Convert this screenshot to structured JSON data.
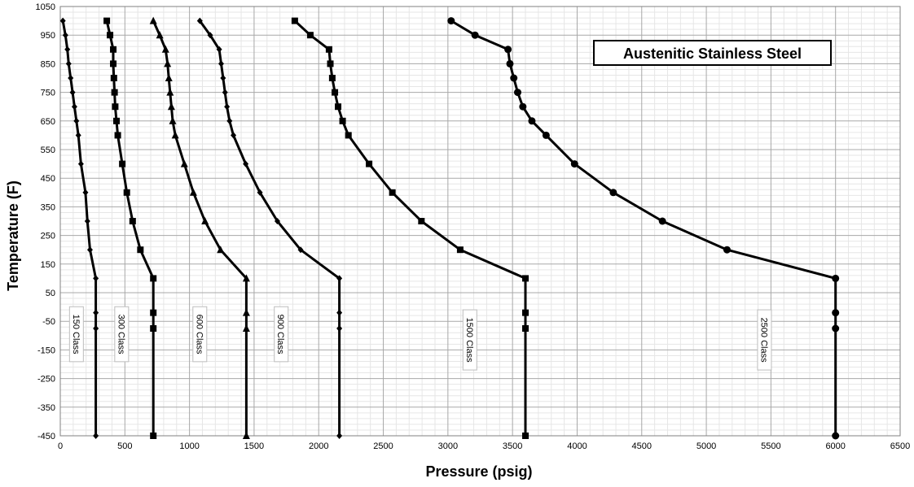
{
  "chart_data": {
    "type": "line",
    "title": "Austenitic Stainless Steel",
    "xlabel": "Pressure (psig)",
    "ylabel": "Temperature (F)",
    "xlim": [
      0,
      6500
    ],
    "ylim": [
      -450,
      1050
    ],
    "xticks": [
      0,
      500,
      1000,
      1500,
      2000,
      2500,
      3000,
      3500,
      4000,
      4500,
      5000,
      5500,
      6000,
      6500
    ],
    "yticks": [
      1050,
      950,
      850,
      750,
      650,
      550,
      450,
      350,
      250,
      150,
      50,
      -50,
      -150,
      -250,
      -350,
      -450
    ],
    "grid": true,
    "series_color": "#000000",
    "series": [
      {
        "name": "150 Class",
        "marker": "diamond",
        "points": [
          [
            275,
            -450
          ],
          [
            275,
            -75
          ],
          [
            275,
            -20
          ],
          [
            275,
            100
          ],
          [
            230,
            200
          ],
          [
            210,
            300
          ],
          [
            195,
            400
          ],
          [
            160,
            500
          ],
          [
            140,
            600
          ],
          [
            125,
            650
          ],
          [
            110,
            700
          ],
          [
            95,
            750
          ],
          [
            80,
            800
          ],
          [
            65,
            850
          ],
          [
            55,
            900
          ],
          [
            40,
            950
          ],
          [
            20,
            1000
          ]
        ]
      },
      {
        "name": "300 Class",
        "marker": "square",
        "points": [
          [
            720,
            -450
          ],
          [
            720,
            -75
          ],
          [
            720,
            -20
          ],
          [
            720,
            100
          ],
          [
            620,
            200
          ],
          [
            560,
            300
          ],
          [
            515,
            400
          ],
          [
            480,
            500
          ],
          [
            445,
            600
          ],
          [
            435,
            650
          ],
          [
            425,
            700
          ],
          [
            420,
            750
          ],
          [
            415,
            800
          ],
          [
            410,
            850
          ],
          [
            410,
            900
          ],
          [
            385,
            950
          ],
          [
            360,
            1000
          ]
        ]
      },
      {
        "name": "600 Class",
        "marker": "triangle",
        "points": [
          [
            1440,
            -450
          ],
          [
            1440,
            -75
          ],
          [
            1440,
            -20
          ],
          [
            1440,
            100
          ],
          [
            1240,
            200
          ],
          [
            1120,
            300
          ],
          [
            1030,
            400
          ],
          [
            960,
            500
          ],
          [
            890,
            600
          ],
          [
            870,
            650
          ],
          [
            860,
            700
          ],
          [
            850,
            750
          ],
          [
            840,
            800
          ],
          [
            830,
            850
          ],
          [
            815,
            900
          ],
          [
            770,
            950
          ],
          [
            720,
            1000
          ]
        ]
      },
      {
        "name": "900 Class",
        "marker": "diamond",
        "points": [
          [
            2160,
            -450
          ],
          [
            2160,
            -75
          ],
          [
            2160,
            -20
          ],
          [
            2160,
            100
          ],
          [
            1860,
            200
          ],
          [
            1680,
            300
          ],
          [
            1545,
            400
          ],
          [
            1435,
            500
          ],
          [
            1340,
            600
          ],
          [
            1310,
            650
          ],
          [
            1290,
            700
          ],
          [
            1275,
            750
          ],
          [
            1260,
            800
          ],
          [
            1245,
            850
          ],
          [
            1230,
            900
          ],
          [
            1160,
            950
          ],
          [
            1080,
            1000
          ]
        ]
      },
      {
        "name": "1500 Class",
        "marker": "square",
        "points": [
          [
            3600,
            -450
          ],
          [
            3600,
            -75
          ],
          [
            3600,
            -20
          ],
          [
            3600,
            100
          ],
          [
            3095,
            200
          ],
          [
            2795,
            300
          ],
          [
            2570,
            400
          ],
          [
            2390,
            500
          ],
          [
            2230,
            600
          ],
          [
            2185,
            650
          ],
          [
            2150,
            700
          ],
          [
            2125,
            750
          ],
          [
            2105,
            800
          ],
          [
            2090,
            850
          ],
          [
            2080,
            900
          ],
          [
            1935,
            950
          ],
          [
            1815,
            1000
          ]
        ]
      },
      {
        "name": "2500 Class",
        "marker": "circle",
        "points": [
          [
            6000,
            -450
          ],
          [
            6000,
            -75
          ],
          [
            6000,
            -20
          ],
          [
            6000,
            100
          ],
          [
            5160,
            200
          ],
          [
            4660,
            300
          ],
          [
            4280,
            400
          ],
          [
            3980,
            500
          ],
          [
            3760,
            600
          ],
          [
            3650,
            650
          ],
          [
            3580,
            700
          ],
          [
            3540,
            750
          ],
          [
            3510,
            800
          ],
          [
            3480,
            850
          ],
          [
            3465,
            900
          ],
          [
            3210,
            950
          ],
          [
            3025,
            1000
          ]
        ]
      }
    ],
    "class_labels": [
      {
        "text": "150 Class",
        "x": 125,
        "y": -95
      },
      {
        "text": "300 Class",
        "x": 475,
        "y": -95
      },
      {
        "text": "600 Class",
        "x": 1080,
        "y": -95
      },
      {
        "text": "900 Class",
        "x": 1710,
        "y": -95
      },
      {
        "text": "1500 Class",
        "x": 3170,
        "y": -115
      },
      {
        "text": "2500 Class",
        "x": 5450,
        "y": -115
      }
    ]
  }
}
